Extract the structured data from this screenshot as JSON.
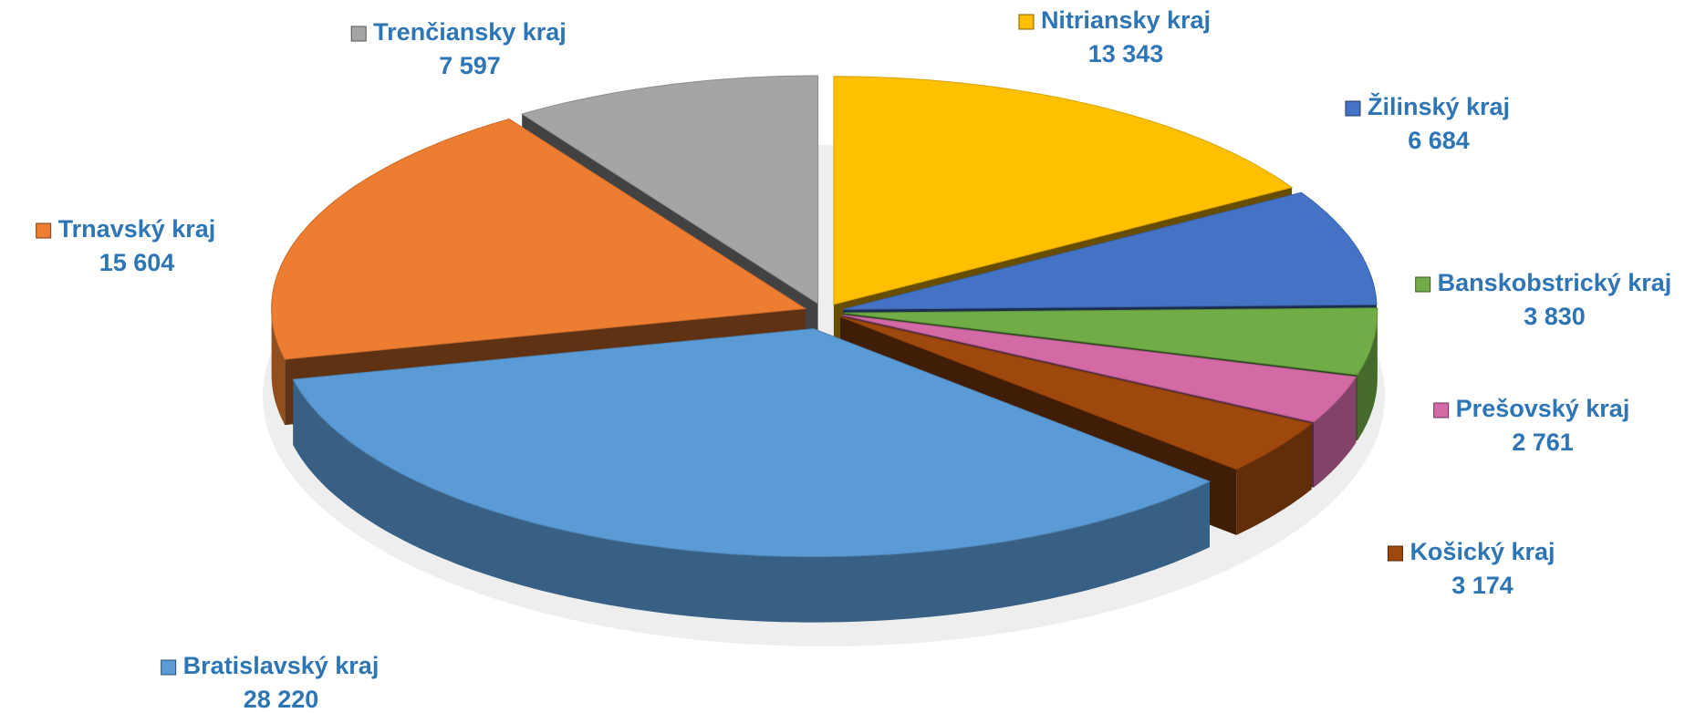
{
  "chart_data": {
    "type": "pie3d",
    "categories": [
      "Nitriansky kraj",
      "Žilinský kraj",
      "Banskobstrický kraj",
      "Prešovský kraj",
      "Košický kraj",
      "Bratislavský kraj",
      "Trnavský kraj",
      "Trenčiansky kraj"
    ],
    "values": [
      13343,
      6684,
      3830,
      2761,
      3174,
      28220,
      15604,
      7597
    ],
    "value_labels": [
      "13 343",
      "6 684",
      "3 830",
      "2 761",
      "3 174",
      "28 220",
      "15 604",
      "7 597"
    ],
    "colors": [
      "#FFC000",
      "#4472C4",
      "#70AD47",
      "#D36AA6",
      "#9E480E",
      "#5B9BD5",
      "#ED7D31",
      "#A5A5A5"
    ]
  }
}
